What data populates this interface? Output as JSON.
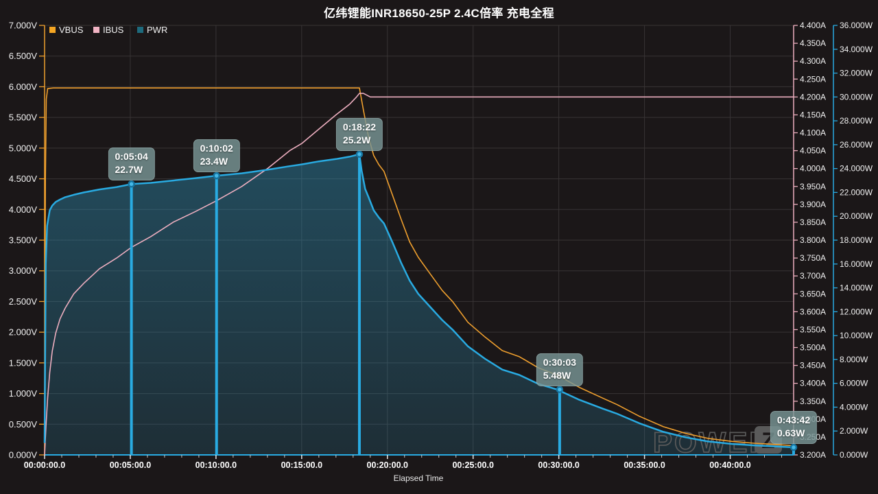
{
  "title": "亿纬锂能INR18650-25P 2.4C倍率 充电全程",
  "xlabel": "Elapsed Time",
  "legend": [
    {
      "label": "VBUS",
      "color": "#f5a623"
    },
    {
      "label": "IBUS",
      "color": "#f2b4c4"
    },
    {
      "label": "PWR",
      "color": "#1d6a7d"
    }
  ],
  "watermark": {
    "text": "POWER-",
    "logo": "Z"
  },
  "colors": {
    "background": "#1b1718",
    "grid": "#383435",
    "vbus": "#f0a02e",
    "ibus": "#eeafc0",
    "pwr": "#29abe2",
    "pwr_fill_top": "rgba(45,150,190,0.42)",
    "pwr_fill_bottom": "rgba(45,150,190,0.18)",
    "annotation": "#29abe2",
    "marker_fill": "#45b9e8",
    "marker_ring": "#17749f",
    "axis_text": "#f2f2f2",
    "watermark_gray": "#5a5a5a"
  },
  "chart_data": {
    "type": "line",
    "x_unit": "minutes",
    "x_range_minutes": [
      0,
      43.7
    ],
    "x_minor_tick_minutes": 1,
    "x_ticks": [
      {
        "t": 0,
        "label": "00:00:00.0"
      },
      {
        "t": 5,
        "label": "00:05:00.0"
      },
      {
        "t": 10,
        "label": "00:10:00.0"
      },
      {
        "t": 15,
        "label": "00:15:00.0"
      },
      {
        "t": 20,
        "label": "00:20:00.0"
      },
      {
        "t": 25,
        "label": "00:25:00.0"
      },
      {
        "t": 30,
        "label": "00:30:00.0"
      },
      {
        "t": 35,
        "label": "00:35:00.0"
      },
      {
        "t": 40,
        "label": "00:40:00.0"
      }
    ],
    "axes": {
      "voltage": {
        "unit": "V",
        "range": [
          0,
          7
        ],
        "step": 0.5,
        "color": "#f0a02e",
        "side": "left",
        "labels": [
          "7.000V",
          "6.500V",
          "6.000V",
          "5.500V",
          "5.000V",
          "4.500V",
          "4.000V",
          "3.500V",
          "3.000V",
          "2.500V",
          "2.000V",
          "1.500V",
          "1.000V",
          "0.500V",
          "0.000V"
        ]
      },
      "current": {
        "unit": "A",
        "range": [
          3.2,
          4.4
        ],
        "step": 0.05,
        "color": "#eeafc0",
        "side": "right-inner",
        "labels": [
          "4.400A",
          "4.350A",
          "4.300A",
          "4.250A",
          "4.200A",
          "4.150A",
          "4.100A",
          "4.050A",
          "4.000A",
          "3.950A",
          "3.900A",
          "3.850A",
          "3.800A",
          "3.750A",
          "3.700A",
          "3.650A",
          "3.600A",
          "3.550A",
          "3.500A",
          "3.450A",
          "3.400A",
          "3.350A",
          "3.300A",
          "3.250A",
          "3.200A"
        ]
      },
      "power": {
        "unit": "W",
        "range": [
          0,
          36
        ],
        "step": 2,
        "color": "#29abe2",
        "side": "right-outer",
        "labels": [
          "36.000W",
          "34.000W",
          "32.000W",
          "30.000W",
          "28.000W",
          "26.000W",
          "24.000W",
          "22.000W",
          "20.000W",
          "18.000W",
          "16.000W",
          "14.000W",
          "12.000W",
          "10.000W",
          "8.000W",
          "6.000W",
          "4.000W",
          "2.000W",
          "0.000W"
        ]
      }
    },
    "series": [
      {
        "name": "VBUS",
        "axis": "voltage",
        "color": "#f0a02e",
        "width": 1.6,
        "fill": false,
        "points": [
          [
            0,
            0.3
          ],
          [
            0.05,
            4.5
          ],
          [
            0.1,
            5.8
          ],
          [
            0.18,
            5.97
          ],
          [
            0.5,
            5.98
          ],
          [
            5,
            5.98
          ],
          [
            10,
            5.98
          ],
          [
            15,
            5.98
          ],
          [
            18.37,
            5.98
          ],
          [
            18.6,
            5.62
          ],
          [
            18.9,
            5.18
          ],
          [
            19.2,
            4.88
          ],
          [
            19.5,
            4.73
          ],
          [
            19.8,
            4.62
          ],
          [
            20.3,
            4.23
          ],
          [
            20.8,
            3.84
          ],
          [
            21.3,
            3.47
          ],
          [
            21.8,
            3.22
          ],
          [
            22.5,
            2.95
          ],
          [
            23.2,
            2.68
          ],
          [
            23.8,
            2.5
          ],
          [
            24.7,
            2.16
          ],
          [
            25.7,
            1.92
          ],
          [
            26.7,
            1.7
          ],
          [
            27.7,
            1.6
          ],
          [
            28.8,
            1.42
          ],
          [
            29.9,
            1.3
          ],
          [
            31.2,
            1.1
          ],
          [
            32.6,
            0.92
          ],
          [
            33.4,
            0.82
          ],
          [
            34.7,
            0.63
          ],
          [
            36.1,
            0.46
          ],
          [
            37.4,
            0.35
          ],
          [
            38.7,
            0.27
          ],
          [
            40.1,
            0.22
          ],
          [
            41.4,
            0.19
          ],
          [
            42.7,
            0.17
          ],
          [
            43.7,
            0.15
          ]
        ]
      },
      {
        "name": "IBUS",
        "axis": "current",
        "color": "#eeafc0",
        "width": 1.6,
        "fill": false,
        "points": [
          [
            0,
            3.2
          ],
          [
            0.08,
            3.28
          ],
          [
            0.18,
            3.36
          ],
          [
            0.3,
            3.43
          ],
          [
            0.45,
            3.49
          ],
          [
            0.65,
            3.54
          ],
          [
            0.9,
            3.58
          ],
          [
            1.2,
            3.61
          ],
          [
            1.7,
            3.65
          ],
          [
            2.3,
            3.68
          ],
          [
            3.2,
            3.72
          ],
          [
            4.2,
            3.75
          ],
          [
            5.07,
            3.78
          ],
          [
            6.2,
            3.81
          ],
          [
            7.5,
            3.85
          ],
          [
            8.8,
            3.88
          ],
          [
            10.03,
            3.91
          ],
          [
            11.5,
            3.95
          ],
          [
            13,
            4.0
          ],
          [
            14.3,
            4.05
          ],
          [
            15,
            4.07
          ],
          [
            16,
            4.11
          ],
          [
            17,
            4.15
          ],
          [
            17.8,
            4.18
          ],
          [
            18.2,
            4.2
          ],
          [
            18.37,
            4.21
          ],
          [
            18.6,
            4.21
          ],
          [
            19,
            4.2
          ],
          [
            25,
            4.2
          ],
          [
            32,
            4.2
          ],
          [
            38,
            4.2
          ],
          [
            43.7,
            4.2
          ]
        ]
      },
      {
        "name": "PWR",
        "axis": "power",
        "color": "#29abe2",
        "width": 2.5,
        "fill": true,
        "points": [
          [
            0,
            1
          ],
          [
            0.07,
            16
          ],
          [
            0.15,
            19.2
          ],
          [
            0.3,
            20.5
          ],
          [
            0.45,
            20.9
          ],
          [
            0.65,
            21.2
          ],
          [
            0.9,
            21.4
          ],
          [
            1.2,
            21.6
          ],
          [
            1.7,
            21.8
          ],
          [
            2.3,
            22.0
          ],
          [
            3.2,
            22.25
          ],
          [
            4.2,
            22.45
          ],
          [
            5.07,
            22.7
          ],
          [
            6.2,
            22.8
          ],
          [
            7.5,
            23.0
          ],
          [
            8.8,
            23.2
          ],
          [
            10.03,
            23.4
          ],
          [
            11.5,
            23.6
          ],
          [
            13,
            23.9
          ],
          [
            14.3,
            24.2
          ],
          [
            15,
            24.35
          ],
          [
            16,
            24.6
          ],
          [
            17,
            24.8
          ],
          [
            17.8,
            25.0
          ],
          [
            18.37,
            25.2
          ],
          [
            18.5,
            23.8
          ],
          [
            18.7,
            22.3
          ],
          [
            18.9,
            21.6
          ],
          [
            19.2,
            20.5
          ],
          [
            19.5,
            19.9
          ],
          [
            19.8,
            19.4
          ],
          [
            20.3,
            17.8
          ],
          [
            20.8,
            16.1
          ],
          [
            21.3,
            14.6
          ],
          [
            21.8,
            13.5
          ],
          [
            22.5,
            12.4
          ],
          [
            23.2,
            11.3
          ],
          [
            23.8,
            10.5
          ],
          [
            24.7,
            9.1
          ],
          [
            25.7,
            8.05
          ],
          [
            26.7,
            7.15
          ],
          [
            27.7,
            6.7
          ],
          [
            28.8,
            5.95
          ],
          [
            29.9,
            5.48
          ],
          [
            31.2,
            4.62
          ],
          [
            32.6,
            3.86
          ],
          [
            33.4,
            3.45
          ],
          [
            34.7,
            2.65
          ],
          [
            36.1,
            1.93
          ],
          [
            37.4,
            1.47
          ],
          [
            38.7,
            1.13
          ],
          [
            40.1,
            0.92
          ],
          [
            41.4,
            0.8
          ],
          [
            42.7,
            0.71
          ],
          [
            43.7,
            0.63
          ]
        ]
      }
    ],
    "annotations": [
      {
        "t": 5.067,
        "power": 22.7,
        "time_label": "0:05:04",
        "value_label": "22.7W"
      },
      {
        "t": 10.033,
        "power": 23.4,
        "time_label": "0:10:02",
        "value_label": "23.4W"
      },
      {
        "t": 18.367,
        "power": 25.2,
        "time_label": "0:18:22",
        "value_label": "25.2W"
      },
      {
        "t": 30.05,
        "power": 5.48,
        "time_label": "0:30:03",
        "value_label": "5.48W"
      },
      {
        "t": 43.7,
        "power": 0.63,
        "time_label": "0:43:42",
        "value_label": "0.63W"
      }
    ]
  }
}
